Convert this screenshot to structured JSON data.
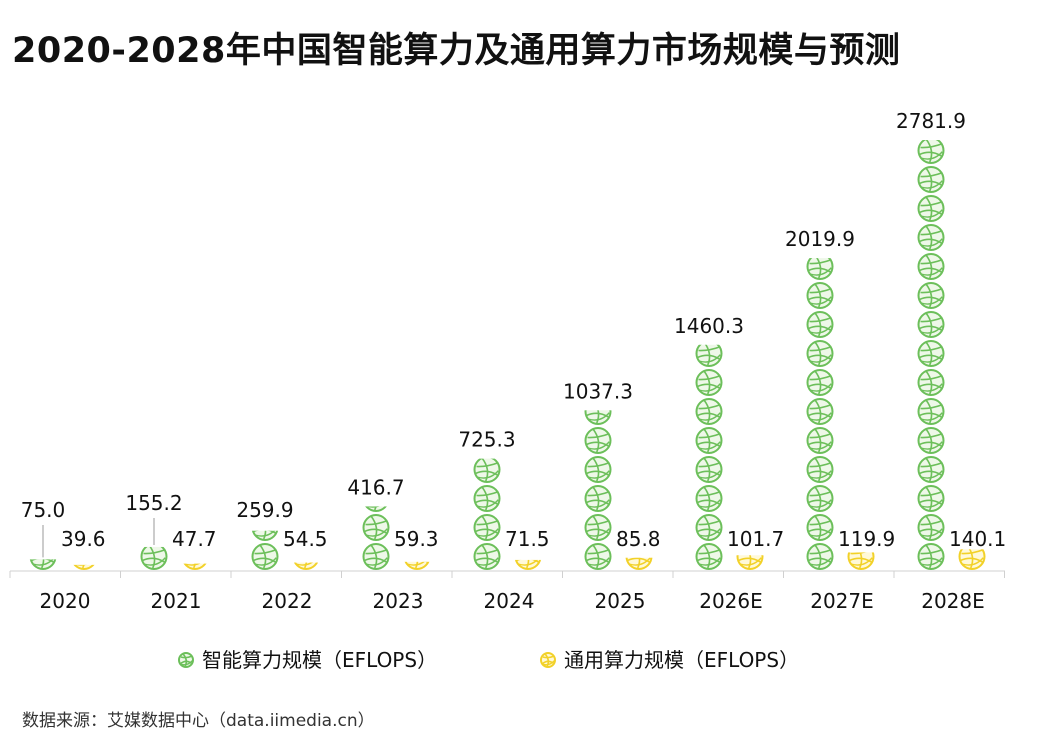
{
  "chart_data": {
    "type": "bar",
    "title": "2020-2028年中国智能算力及通用算力市场规模与预测",
    "categories": [
      "2020",
      "2021",
      "2022",
      "2023",
      "2024",
      "2025",
      "2026E",
      "2027E",
      "2028E"
    ],
    "series": [
      {
        "name": "智能算力规模（EFLOPS）",
        "icon": "globe-icon",
        "color": "#6cbf5a",
        "values": [
          75.0,
          155.2,
          259.9,
          416.7,
          725.3,
          1037.3,
          1460.3,
          2019.9,
          2781.9
        ]
      },
      {
        "name": "通用算力规模（EFLOPS）",
        "icon": "globe-icon",
        "color": "#f2d128",
        "values": [
          39.6,
          47.7,
          54.5,
          59.3,
          71.5,
          85.8,
          101.7,
          119.9,
          140.1
        ]
      }
    ],
    "ylim": [
      0,
      2781.9
    ],
    "grid": false,
    "legend": "bottom"
  },
  "source": "数据来源：艾媒数据中心（data.iimedia.cn）"
}
